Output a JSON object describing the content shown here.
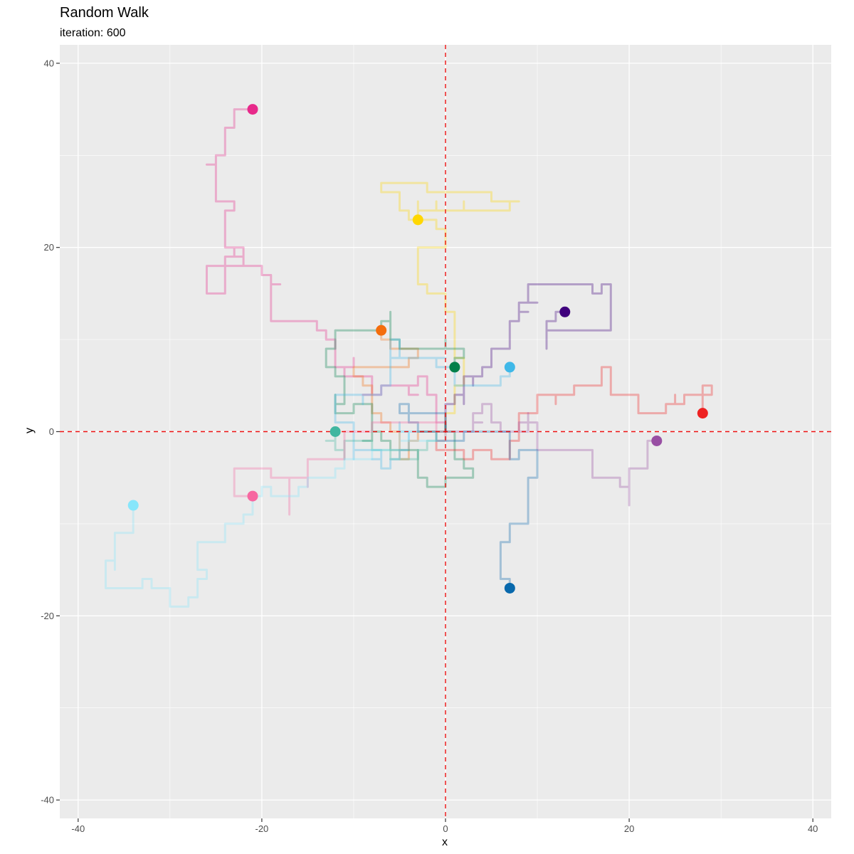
{
  "chart_data": {
    "type": "line",
    "title": "Random Walk",
    "subtitle": "iteration: 600",
    "xlabel": "x",
    "ylabel": "y",
    "xlim": [
      -42,
      42
    ],
    "ylim": [
      -42,
      42
    ],
    "x_ticks": [
      -40,
      -20,
      0,
      20,
      40
    ],
    "y_ticks": [
      -40,
      -20,
      0,
      20,
      40
    ],
    "grid": true,
    "reference_lines": {
      "x": 0,
      "y": 0,
      "color": "#ee1111",
      "style": "dashed"
    },
    "series": [
      {
        "color": "#e7298a",
        "points": [
          [
            0,
            0
          ],
          [
            -4,
            4
          ],
          [
            -10,
            8
          ],
          [
            -15,
            12
          ],
          [
            -18,
            16
          ],
          [
            -20,
            18
          ],
          [
            -26,
            15
          ],
          [
            -22,
            20
          ],
          [
            -24,
            24
          ],
          [
            -25,
            30
          ],
          [
            -23,
            33
          ],
          [
            -21,
            35
          ]
        ]
      },
      {
        "color": "#ffd700",
        "points": [
          [
            0,
            0
          ],
          [
            2,
            6
          ],
          [
            1,
            12
          ],
          [
            -3,
            17
          ],
          [
            0,
            21
          ],
          [
            -7,
            27
          ],
          [
            5,
            26
          ],
          [
            8,
            25
          ],
          [
            -1,
            24
          ],
          [
            -3,
            23
          ]
        ]
      },
      {
        "color": "#3f007d",
        "points": [
          [
            0,
            0
          ],
          [
            5,
            8
          ],
          [
            9,
            14
          ],
          [
            17,
            16
          ],
          [
            18,
            12
          ],
          [
            11,
            10
          ],
          [
            13,
            13
          ]
        ]
      },
      {
        "color": "#f46d0d",
        "points": [
          [
            0,
            0
          ],
          [
            -5,
            -3
          ],
          [
            -8,
            3
          ],
          [
            -10,
            7
          ],
          [
            -4,
            9
          ],
          [
            -7,
            11
          ]
        ]
      },
      {
        "color": "#00804a",
        "points": [
          [
            0,
            0
          ],
          [
            3,
            -5
          ],
          [
            -3,
            -4
          ],
          [
            -8,
            3
          ],
          [
            -12,
            10
          ],
          [
            -6,
            13
          ],
          [
            2,
            9
          ],
          [
            1,
            7
          ]
        ]
      },
      {
        "color": "#3fb8e8",
        "points": [
          [
            0,
            0
          ],
          [
            -6,
            -4
          ],
          [
            -10,
            -2
          ],
          [
            -12,
            4
          ],
          [
            -6,
            8
          ],
          [
            4,
            5
          ],
          [
            7,
            7
          ]
        ]
      },
      {
        "color": "#ee2222",
        "points": [
          [
            0,
            0
          ],
          [
            5,
            -2
          ],
          [
            12,
            4
          ],
          [
            18,
            7
          ],
          [
            21,
            2
          ],
          [
            26,
            4
          ],
          [
            28,
            2
          ]
        ]
      },
      {
        "color": "#984ea3",
        "points": [
          [
            0,
            0
          ],
          [
            5,
            3
          ],
          [
            10,
            -2
          ],
          [
            16,
            -5
          ],
          [
            20,
            -8
          ],
          [
            22,
            -4
          ],
          [
            23,
            -1
          ]
        ]
      },
      {
        "color": "#0868ac",
        "points": [
          [
            0,
            0
          ],
          [
            -5,
            3
          ],
          [
            2,
            -1
          ],
          [
            10,
            -3
          ],
          [
            9,
            -7
          ],
          [
            7,
            -12
          ],
          [
            7,
            -17
          ]
        ]
      },
      {
        "color": "#41b6a0",
        "points": [
          [
            0,
            0
          ],
          [
            -3,
            -3
          ],
          [
            -8,
            -1
          ],
          [
            -11,
            -3
          ],
          [
            -12,
            0
          ]
        ]
      },
      {
        "color": "#f768a1",
        "points": [
          [
            0,
            0
          ],
          [
            -8,
            1
          ],
          [
            -15,
            -3
          ],
          [
            -17,
            -9
          ],
          [
            -19,
            -4
          ],
          [
            -23,
            -6
          ],
          [
            -21,
            -7
          ]
        ]
      },
      {
        "color": "#87e6fb",
        "points": [
          [
            0,
            0
          ],
          [
            -6,
            -2
          ],
          [
            -12,
            -4
          ],
          [
            -20,
            -6
          ],
          [
            -27,
            -14
          ],
          [
            -29,
            -19
          ],
          [
            -37,
            -17
          ],
          [
            -36,
            -11
          ],
          [
            -34,
            -8
          ]
        ]
      }
    ]
  }
}
